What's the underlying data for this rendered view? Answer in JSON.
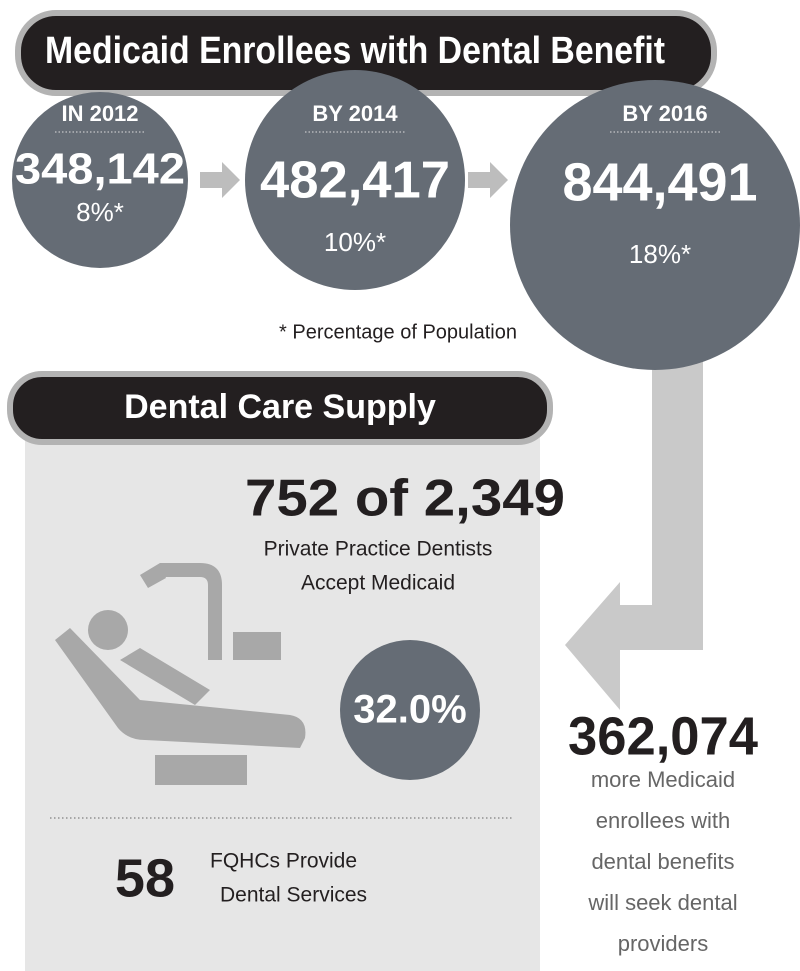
{
  "header": {
    "title": "Medicaid Enrollees with Dental Benefit"
  },
  "enrollment": [
    {
      "label": "IN 2012",
      "count": "348,142",
      "share": "8%*"
    },
    {
      "label": "BY 2014",
      "count": "482,417",
      "share": "10%*"
    },
    {
      "label": "BY 2016",
      "count": "844,491",
      "share": "18%*"
    }
  ],
  "footnote": "* Percentage of Population",
  "supply": {
    "title": "Dental Care Supply",
    "accepting": "752 of 2,349",
    "accepting_caption": [
      "Private Practice Dentists",
      "Accept Medicaid"
    ],
    "share": "32.0%",
    "fqhc_count": "58",
    "fqhc_caption": [
      "FQHCs Provide",
      "Dental Services"
    ]
  },
  "increase": {
    "count": "362,074",
    "caption": [
      "more Medicaid",
      "enrollees with",
      "dental benefits",
      "will seek dental",
      "providers"
    ]
  }
}
